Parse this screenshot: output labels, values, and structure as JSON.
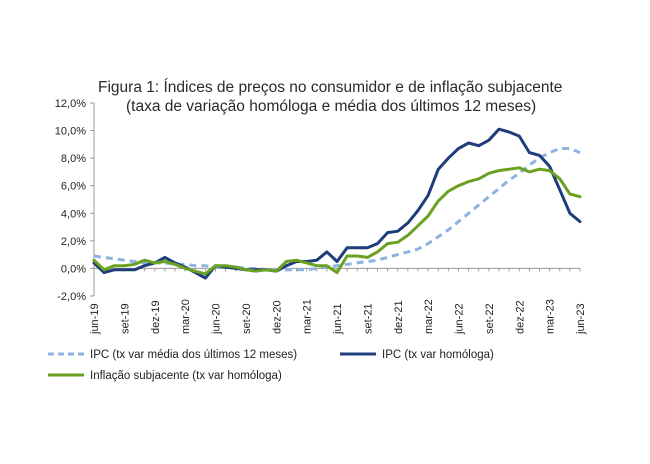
{
  "chart_data": {
    "type": "line",
    "title": "Figura 1: Índices de preços no consumidor e de inflação subjacente",
    "subtitle": "(taxa de variação homóloga e média dos últimos 12 meses)",
    "xlabel": "",
    "ylabel": "",
    "ylim": [
      -2,
      12
    ],
    "y_ticks": [
      "12,0%",
      "10,0%",
      "8,0%",
      "6,0%",
      "4,0%",
      "2,0%",
      "0,0%",
      "-2,0%"
    ],
    "y_tick_values": [
      12,
      10,
      8,
      6,
      4,
      2,
      0,
      -2
    ],
    "x_tick_labels": [
      "jun-19",
      "set-19",
      "dez-19",
      "mar-20",
      "jun-20",
      "set-20",
      "dez-20",
      "mar-21",
      "jun-21",
      "set-21",
      "dez-21",
      "mar-22",
      "jun-22",
      "set-22",
      "dez-22",
      "mar-23",
      "jun-23"
    ],
    "x_tick_indices": [
      0,
      3,
      6,
      9,
      12,
      15,
      18,
      21,
      24,
      27,
      30,
      33,
      36,
      39,
      42,
      45,
      48
    ],
    "grid": false,
    "legend_position": "bottom",
    "x": [
      "jun-19",
      "jul-19",
      "ago-19",
      "set-19",
      "out-19",
      "nov-19",
      "dez-19",
      "jan-20",
      "fev-20",
      "mar-20",
      "abr-20",
      "mai-20",
      "jun-20",
      "jul-20",
      "ago-20",
      "set-20",
      "out-20",
      "nov-20",
      "dez-20",
      "jan-21",
      "fev-21",
      "mar-21",
      "abr-21",
      "mai-21",
      "jun-21",
      "jul-21",
      "ago-21",
      "set-21",
      "out-21",
      "nov-21",
      "dez-21",
      "jan-22",
      "fev-22",
      "mar-22",
      "abr-22",
      "mai-22",
      "jun-22",
      "jul-22",
      "ago-22",
      "set-22",
      "out-22",
      "nov-22",
      "dez-22",
      "jan-23",
      "fev-23",
      "mar-23",
      "abr-23",
      "mai-23",
      "jun-23"
    ],
    "series": [
      {
        "name": "IPC (tx var média dos últimos 12 meses)",
        "color": "#8db3e2",
        "dash": true,
        "values": [
          0.9,
          0.8,
          0.7,
          0.6,
          0.5,
          0.4,
          0.4,
          0.4,
          0.3,
          0.3,
          0.2,
          0.2,
          0.1,
          0.1,
          0.1,
          0.0,
          0.0,
          -0.1,
          -0.1,
          -0.1,
          -0.1,
          -0.1,
          0.0,
          0.1,
          0.2,
          0.3,
          0.4,
          0.5,
          0.6,
          0.8,
          1.0,
          1.2,
          1.4,
          1.8,
          2.3,
          2.8,
          3.4,
          4.0,
          4.6,
          5.2,
          5.8,
          6.4,
          6.9,
          7.5,
          8.0,
          8.4,
          8.7,
          8.7,
          8.4
        ]
      },
      {
        "name": "IPC (tx var homóloga)",
        "color": "#1f3d7a",
        "dash": false,
        "values": [
          0.4,
          -0.3,
          -0.1,
          -0.1,
          -0.1,
          0.2,
          0.4,
          0.8,
          0.4,
          0.1,
          -0.3,
          -0.7,
          0.2,
          0.1,
          0.0,
          -0.1,
          -0.1,
          -0.1,
          -0.2,
          0.2,
          0.5,
          0.5,
          0.6,
          1.2,
          0.5,
          1.5,
          1.5,
          1.5,
          1.8,
          2.6,
          2.7,
          3.3,
          4.2,
          5.3,
          7.2,
          8.0,
          8.7,
          9.1,
          8.9,
          9.3,
          10.1,
          9.9,
          9.6,
          8.4,
          8.2,
          7.4,
          5.7,
          4.0,
          3.4
        ]
      },
      {
        "name": "Inflação subjacente (tx var homóloga)",
        "color": "#6aa121",
        "dash": false,
        "values": [
          0.6,
          -0.1,
          0.2,
          0.2,
          0.3,
          0.6,
          0.4,
          0.5,
          0.3,
          0.0,
          -0.2,
          -0.4,
          0.2,
          0.2,
          0.1,
          -0.1,
          -0.2,
          -0.1,
          -0.2,
          0.5,
          0.6,
          0.4,
          0.2,
          0.2,
          -0.3,
          0.9,
          0.9,
          0.8,
          1.2,
          1.8,
          1.9,
          2.4,
          3.1,
          3.8,
          4.9,
          5.6,
          6.0,
          6.3,
          6.5,
          6.9,
          7.1,
          7.2,
          7.3,
          7.0,
          7.2,
          7.1,
          6.5,
          5.4,
          5.2
        ]
      }
    ]
  }
}
